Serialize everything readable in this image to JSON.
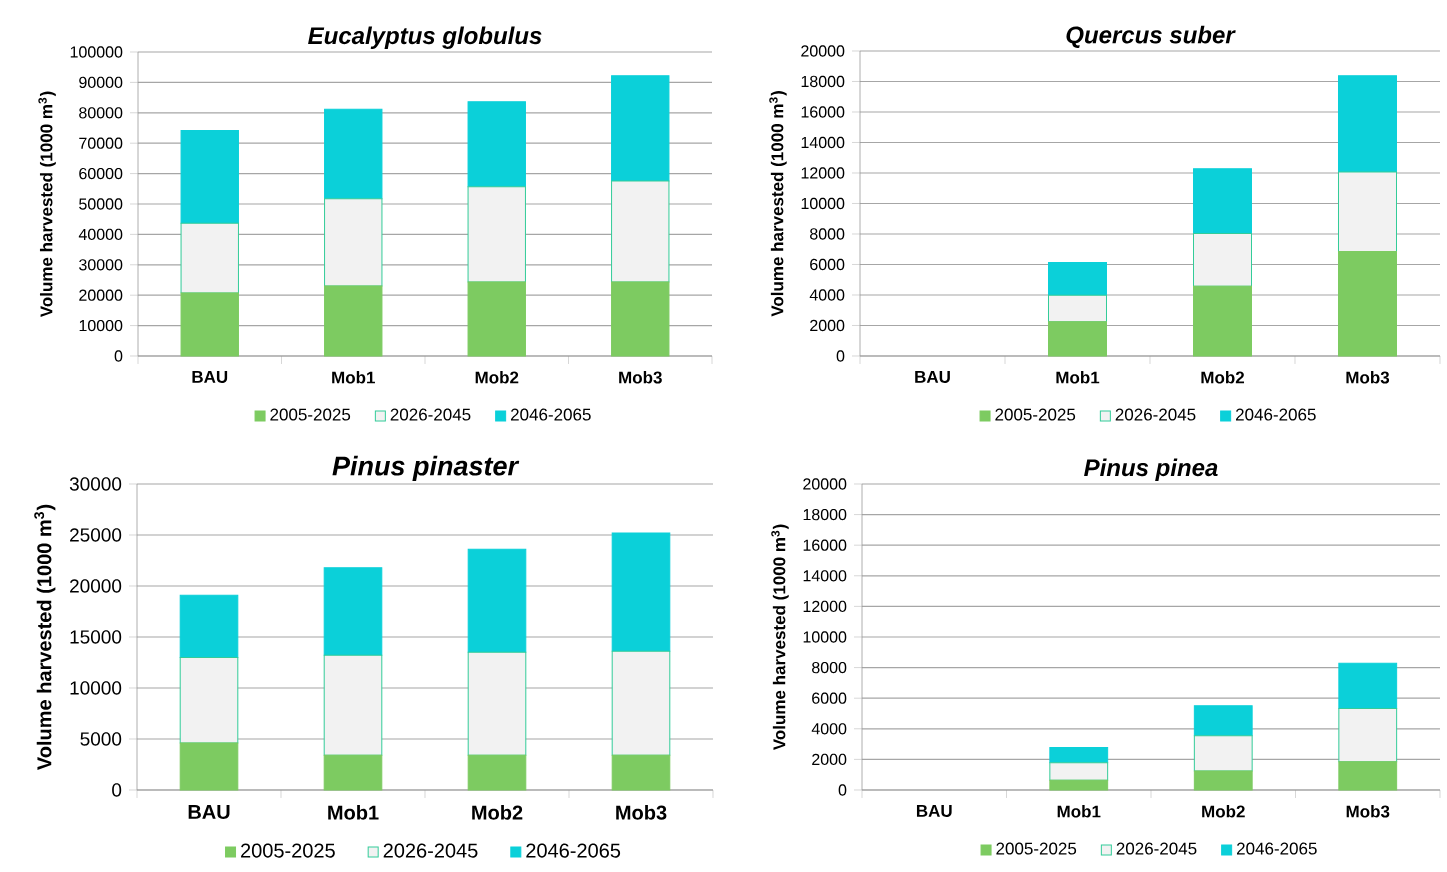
{
  "chart_data": [
    {
      "type": "bar",
      "stacked": true,
      "title": "Eucalyptus globulus",
      "ylabel": "Volume harvested (1000 m$^{3}$)",
      "categories": [
        "BAU",
        "Mob1",
        "Mob2",
        "Mob3"
      ],
      "series": [
        {
          "name": "2005-2025",
          "color": "#7dcb61",
          "values": [
            20700,
            23000,
            24300,
            24300
          ]
        },
        {
          "name": "2026-2045",
          "color": "#f2f2f2",
          "values": [
            23000,
            28700,
            31400,
            33300
          ]
        },
        {
          "name": "2046-2065",
          "color": "#0bd0d9",
          "values": [
            30500,
            29500,
            27900,
            34600
          ]
        }
      ],
      "ylim": [
        0,
        100000
      ],
      "yticks": [
        0,
        10000,
        20000,
        30000,
        40000,
        50000,
        60000,
        70000,
        80000,
        90000,
        100000
      ],
      "grid": "y",
      "legend": "bottom"
    },
    {
      "type": "bar",
      "stacked": true,
      "title": "Quercus suber",
      "ylabel": "Volume harvested (1000 m$^{3}$)",
      "categories": [
        "BAU",
        "Mob1",
        "Mob2",
        "Mob3"
      ],
      "series": [
        {
          "name": "2005-2025",
          "color": "#7dcb61",
          "values": [
            0,
            2250,
            4580,
            6850
          ]
        },
        {
          "name": "2026-2045",
          "color": "#f2f2f2",
          "values": [
            0,
            1740,
            3450,
            5220
          ]
        },
        {
          "name": "2046-2065",
          "color": "#0bd0d9",
          "values": [
            0,
            2140,
            4250,
            6310
          ]
        }
      ],
      "ylim": [
        0,
        20000
      ],
      "yticks": [
        0,
        2000,
        4000,
        6000,
        8000,
        10000,
        12000,
        14000,
        16000,
        18000,
        20000
      ],
      "grid": "y",
      "legend": "bottom"
    },
    {
      "type": "bar",
      "stacked": true,
      "title": "Pinus pinaster",
      "ylabel": "Volume harvested (1000 m$^{3}$)",
      "categories": [
        "BAU",
        "Mob1",
        "Mob2",
        "Mob3"
      ],
      "series": [
        {
          "name": "2005-2025",
          "color": "#7dcb61",
          "values": [
            4600,
            3400,
            3400,
            3400
          ]
        },
        {
          "name": "2026-2045",
          "color": "#f2f2f2",
          "values": [
            8400,
            9800,
            10100,
            10200
          ]
        },
        {
          "name": "2046-2065",
          "color": "#0bd0d9",
          "values": [
            6100,
            8600,
            10100,
            11600
          ]
        }
      ],
      "ylim": [
        0,
        30000
      ],
      "yticks": [
        0,
        5000,
        10000,
        15000,
        20000,
        25000,
        30000
      ],
      "grid": "y",
      "legend": "bottom"
    },
    {
      "type": "bar",
      "stacked": true,
      "title": "Pinus pinea",
      "ylabel": "Volume harvested (1000 m$^{3}$)",
      "categories": [
        "BAU",
        "Mob1",
        "Mob2",
        "Mob3"
      ],
      "series": [
        {
          "name": "2005-2025",
          "color": "#7dcb61",
          "values": [
            0,
            630,
            1240,
            1850
          ]
        },
        {
          "name": "2026-2045",
          "color": "#f2f2f2",
          "values": [
            0,
            1150,
            2310,
            3480
          ]
        },
        {
          "name": "2046-2065",
          "color": "#0bd0d9",
          "values": [
            0,
            1000,
            1960,
            2960
          ]
        }
      ],
      "ylim": [
        0,
        20000
      ],
      "yticks": [
        0,
        2000,
        4000,
        6000,
        8000,
        10000,
        12000,
        14000,
        16000,
        18000,
        20000
      ],
      "grid": "y",
      "legend": "bottom"
    }
  ]
}
